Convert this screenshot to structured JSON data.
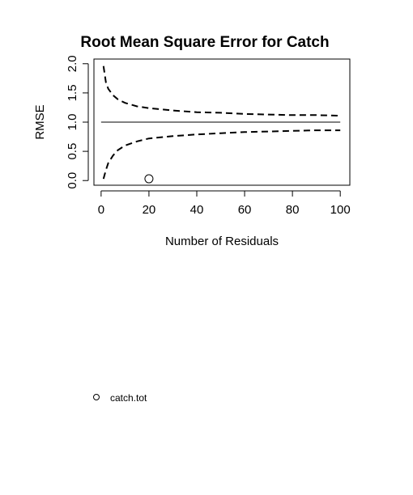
{
  "chart_data": {
    "type": "line",
    "title": "Root Mean Square Error for Catch",
    "xlabel": "Number of Residuals",
    "ylabel": "RMSE",
    "xlim": [
      -3,
      104
    ],
    "ylim": [
      -0.08,
      2.08
    ],
    "x_ticks": [
      "0",
      "20",
      "40",
      "60",
      "80",
      "100"
    ],
    "y_ticks": [
      "0.0",
      "0.5",
      "1.0",
      "1.5",
      "2.0"
    ],
    "reference_line": {
      "y": 1.0,
      "x_range": [
        0,
        100
      ]
    },
    "confidence_bounds": {
      "x": [
        1,
        2,
        3,
        5,
        7,
        10,
        15,
        20,
        30,
        40,
        50,
        60,
        70,
        80,
        90,
        100
      ],
      "upper": [
        1.96,
        1.68,
        1.57,
        1.46,
        1.39,
        1.33,
        1.27,
        1.24,
        1.2,
        1.17,
        1.16,
        1.14,
        1.13,
        1.12,
        1.12,
        1.11
      ],
      "lower": [
        0.03,
        0.18,
        0.3,
        0.43,
        0.52,
        0.6,
        0.67,
        0.72,
        0.76,
        0.79,
        0.81,
        0.83,
        0.84,
        0.85,
        0.86,
        0.86
      ]
    },
    "series": [
      {
        "name": "catch.tot",
        "x": [
          20
        ],
        "y": [
          0.03
        ]
      }
    ],
    "legend_position": "bottom-left",
    "grid": false
  }
}
